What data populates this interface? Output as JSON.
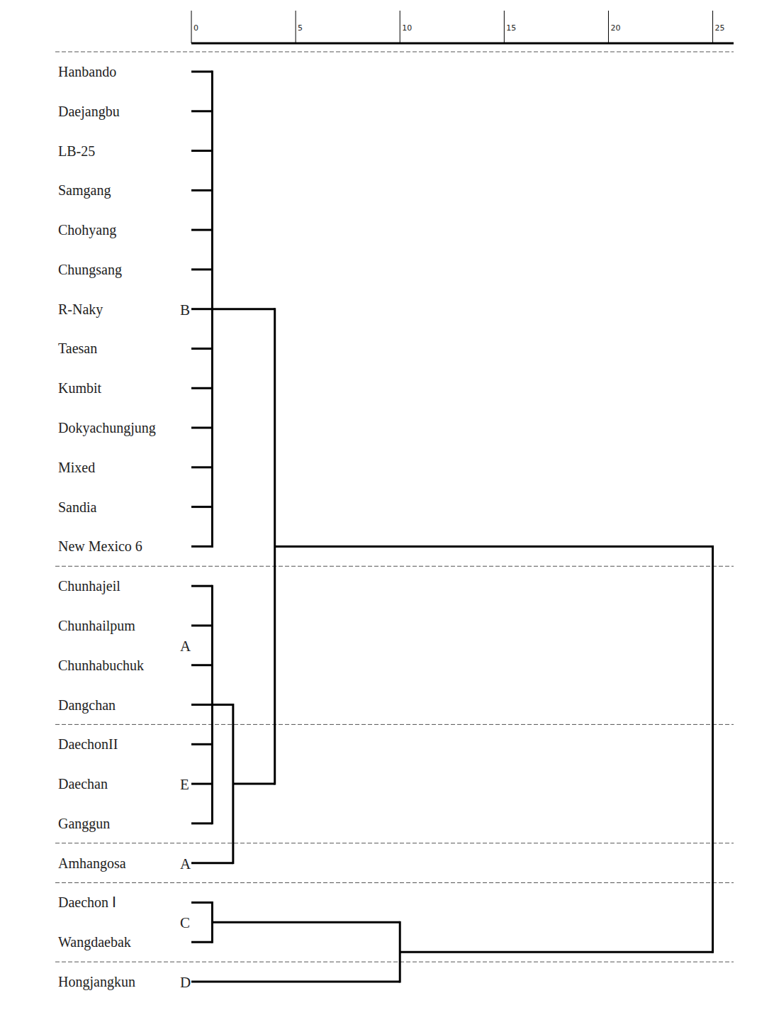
{
  "chart_data": {
    "type": "dendrogram",
    "xlim": [
      0,
      26
    ],
    "xticks": [
      0,
      5,
      10,
      15,
      20,
      25
    ],
    "color": "#000000",
    "leaves": [
      "Hanbando",
      "Daejangbu",
      "LB-25",
      "Samgang",
      "Chohyang",
      "Chungsang",
      "R-Naky",
      "Taesan",
      "Kumbit",
      "Dokyachungjung",
      "Mixed",
      "Sandia",
      "New Mexico 6",
      "Chunhajeil",
      "Chunhailpum",
      "Chunhabuchuk",
      "Dangchan",
      "DaechonII",
      "Daechan",
      "Ganggun",
      "Amhangosa",
      "Daechon Ⅰ",
      "Wangdaebak",
      "Hongjangkun"
    ],
    "merges": [
      {
        "children": [
          0,
          1,
          2,
          3,
          4,
          5,
          6,
          7,
          8,
          9,
          10,
          11,
          12
        ],
        "height": 1
      },
      {
        "children": [
          13,
          14,
          15,
          16,
          17,
          18,
          19
        ],
        "height": 1
      },
      {
        "children": [
          25,
          20
        ],
        "height": 2
      },
      {
        "children": [
          24,
          26
        ],
        "height": 4
      },
      {
        "children": [
          21,
          22
        ],
        "height": 1
      },
      {
        "children": [
          28,
          23
        ],
        "height": 10
      },
      {
        "children": [
          27,
          29
        ],
        "height": 25
      }
    ],
    "groups": [
      {
        "label": "B",
        "leaves": [
          0,
          12
        ]
      },
      {
        "label": "A",
        "leaves": [
          13,
          16
        ]
      },
      {
        "label": "E",
        "leaves": [
          17,
          19
        ]
      },
      {
        "label": "A",
        "leaves": [
          20,
          20
        ]
      },
      {
        "label": "C",
        "leaves": [
          21,
          22
        ]
      },
      {
        "label": "D",
        "leaves": [
          23,
          23
        ]
      }
    ]
  }
}
